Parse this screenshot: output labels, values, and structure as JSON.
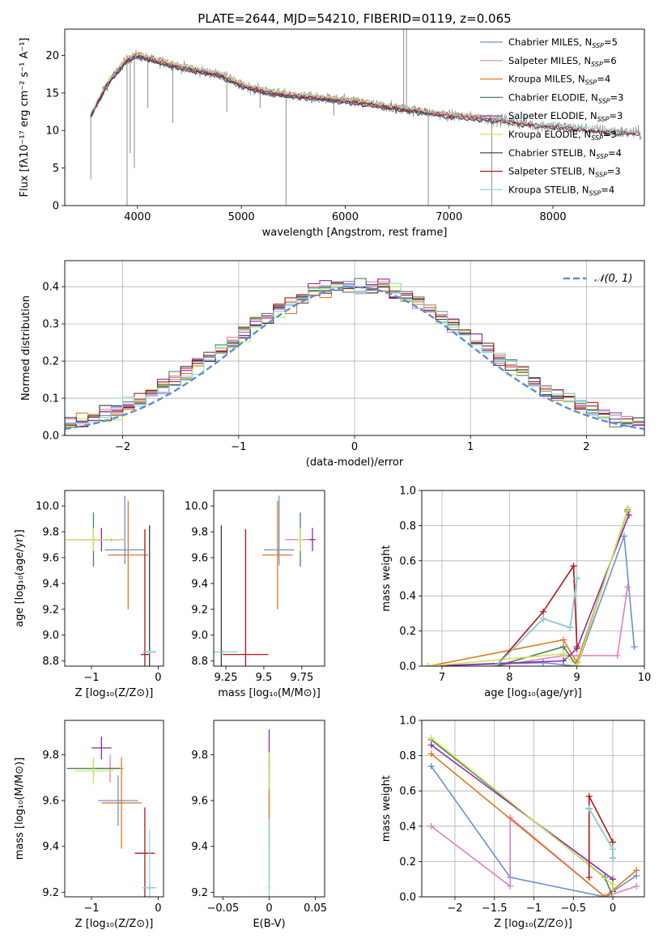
{
  "colors": {
    "Chabrier MILES": "#6b8fd6",
    "Salpeter MILES": "#e07fbf",
    "Kroupa MILES": "#e07a1f",
    "Chabrier ELODIE": "#4f7f5a",
    "Salpeter ELODIE": "#8e2aa3",
    "Kroupa ELODIE": "#c9e85a",
    "Chabrier STELIB": "#3a3a3a",
    "Salpeter STELIB": "#b01818",
    "Kroupa STELIB": "#8fd6da",
    "data": "#808080",
    "normal": "#5b8fd6"
  },
  "chart_data": [
    {
      "id": "spectrum",
      "type": "line",
      "title": "PLATE=2644, MJD=54210, FIBERID=0119, z=0.065",
      "xlabel": "wavelength [Angstrom, rest frame]",
      "ylabel": "Flux [fλ10⁻¹⁷ erg cm⁻² s⁻¹ A⁻¹]",
      "xlim": [
        3300,
        8880
      ],
      "ylim": [
        0,
        23.5
      ],
      "xticks": [
        4000,
        5000,
        6000,
        7000,
        8000
      ],
      "yticks": [
        0,
        5,
        10,
        15,
        20
      ],
      "legend_position": "top-right",
      "legend": [
        {
          "series": "Chabrier MILES",
          "label": "Chabrier MILES, N",
          "sub": "SSP",
          "tail": "=5"
        },
        {
          "series": "Salpeter MILES",
          "label": "Salpeter MILES, N",
          "sub": "SSP",
          "tail": "=6"
        },
        {
          "series": "Kroupa MILES",
          "label": "Kroupa MILES, N",
          "sub": "SSP",
          "tail": "=4"
        },
        {
          "series": "Chabrier ELODIE",
          "label": "Chabrier ELODIE, N",
          "sub": "SSP",
          "tail": "=3"
        },
        {
          "series": "Salpeter ELODIE",
          "label": "Salpeter ELODIE, N",
          "sub": "SSP",
          "tail": "=3"
        },
        {
          "series": "Kroupa ELODIE",
          "label": "Kroupa ELODIE, N",
          "sub": "SSP",
          "tail": "=3"
        },
        {
          "series": "Chabrier STELIB",
          "label": "Chabrier STELIB, N",
          "sub": "SSP",
          "tail": "=4"
        },
        {
          "series": "Salpeter STELIB",
          "label": "Salpeter STELIB, N",
          "sub": "SSP",
          "tail": "=3"
        },
        {
          "series": "Kroupa STELIB",
          "label": "Kroupa STELIB, N",
          "sub": "SSP",
          "tail": "=4"
        }
      ],
      "continuum": {
        "wavelength": [
          3550,
          3700,
          3900,
          4000,
          4200,
          4500,
          4800,
          5000,
          5300,
          5600,
          6000,
          6500,
          7000,
          7400,
          7800,
          8200,
          8600,
          8850
        ],
        "flux": [
          12.0,
          16.0,
          19.5,
          20.0,
          19.2,
          18.2,
          17.4,
          16.0,
          15.0,
          14.5,
          14.0,
          13.0,
          12.0,
          11.5,
          10.8,
          10.3,
          9.8,
          9.6
        ]
      },
      "model_coverage": {
        "MILES": [
          3550,
          7410
        ],
        "ELODIE": [
          3550,
          6800
        ],
        "STELIB": [
          3550,
          8850
        ]
      },
      "spikes": [
        {
          "x": 3550,
          "y": 3.5
        },
        {
          "x": 3900,
          "y": 0
        },
        {
          "x": 3930,
          "y": 7.0
        },
        {
          "x": 3970,
          "y": 5.0
        },
        {
          "x": 4100,
          "y": 13.0
        },
        {
          "x": 4340,
          "y": 11.0
        },
        {
          "x": 4860,
          "y": 12.5
        },
        {
          "x": 5180,
          "y": 13.0
        },
        {
          "x": 5430,
          "y": 0
        },
        {
          "x": 5890,
          "y": 12.0
        },
        {
          "x": 6563,
          "y": 23.5
        },
        {
          "x": 6590,
          "y": 23.5
        },
        {
          "x": 6800,
          "y": 0
        },
        {
          "x": 7410,
          "y": 0
        }
      ]
    },
    {
      "id": "residuals",
      "type": "line",
      "xlabel": "(data-model)/error",
      "ylabel": "Normed distribution",
      "xlim": [
        -2.5,
        2.5
      ],
      "ylim": [
        0,
        0.47
      ],
      "xticks": [
        -2,
        -1,
        0,
        1,
        2
      ],
      "yticks": [
        0.0,
        0.1,
        0.2,
        0.3,
        0.4
      ],
      "bin_width": 0.1,
      "legend_position": "top-right",
      "normal_label": "𝒩(0, 1)",
      "normal": {
        "mean": 0,
        "sigma": 1
      }
    },
    {
      "id": "age-vs-Z",
      "type": "scatter",
      "xlabel": "Z [log₁₀(Z/Z⊙)]",
      "ylabel": "age  [log₁₀(age/yr)]",
      "xlim": [
        -1.4,
        0.08
      ],
      "ylim": [
        8.76,
        10.12
      ],
      "xticks": [
        -1,
        0
      ],
      "yticks": [
        8.8,
        9.0,
        9.2,
        9.4,
        9.6,
        9.8,
        10.0
      ],
      "points": [
        {
          "series": "Chabrier MILES",
          "x": -0.5,
          "y": 9.66,
          "xerr": 0.3,
          "yerr": 0.11,
          "yerr_hi": 0.42
        },
        {
          "series": "Salpeter MILES",
          "x": -0.7,
          "y": 9.74,
          "xerr": 0.18,
          "yerr": 0.01
        },
        {
          "series": "Kroupa MILES",
          "x": -0.45,
          "y": 9.62,
          "xerr": 0.3,
          "yerr": 0.42
        },
        {
          "series": "Chabrier ELODIE",
          "x": -0.97,
          "y": 9.74,
          "xerr": 0.4,
          "yerr": 0.21
        },
        {
          "series": "Salpeter ELODIE",
          "x": -0.85,
          "y": 9.74,
          "xerr": 0.28,
          "yerr": 0.09
        },
        {
          "series": "Kroupa ELODIE",
          "x": -0.97,
          "y": 9.74,
          "xerr": 0.42,
          "yerr": 0.09
        },
        {
          "series": "Chabrier STELIB",
          "x": -0.13,
          "y": 8.87,
          "xerr": 0.1,
          "yerr": 0.98
        },
        {
          "series": "Salpeter STELIB",
          "x": -0.2,
          "y": 8.85,
          "xerr": 0.06,
          "yerr": 0.97
        },
        {
          "series": "Kroupa STELIB",
          "x": -0.13,
          "y": 8.87,
          "xerr": 0.1,
          "yerr": 0.01
        }
      ]
    },
    {
      "id": "age-vs-mass",
      "type": "scatter",
      "xlabel": "mass [log₁₀(M/M⊙)]",
      "ylabel": "",
      "xlim": [
        9.17,
        9.9
      ],
      "ylim": [
        8.76,
        10.12
      ],
      "xticks": [
        9.25,
        9.5,
        9.75
      ],
      "yticks": [
        8.8,
        9.0,
        9.2,
        9.4,
        9.6,
        9.8,
        10.0
      ],
      "points": [
        {
          "series": "Chabrier MILES",
          "x": 9.6,
          "y": 9.66,
          "xerr": 0.1,
          "yerr": 0.12,
          "yerr_hi": 0.42
        },
        {
          "series": "Salpeter MILES",
          "x": 9.74,
          "y": 9.74,
          "xerr": 0.1,
          "yerr": 0.01
        },
        {
          "series": "Kroupa MILES",
          "x": 9.59,
          "y": 9.62,
          "xerr": 0.1,
          "yerr": 0.42
        },
        {
          "series": "Chabrier ELODIE",
          "x": 9.74,
          "y": 9.74,
          "xerr": 0.02,
          "yerr": 0.21
        },
        {
          "series": "Salpeter ELODIE",
          "x": 9.82,
          "y": 9.74,
          "xerr": 0.02,
          "yerr": 0.09
        },
        {
          "series": "Kroupa ELODIE",
          "x": 9.74,
          "y": 9.74,
          "xerr": 0.02,
          "yerr": 0.09
        },
        {
          "series": "Chabrier STELIB",
          "x": 9.22,
          "y": 8.87,
          "xerr": 0.01,
          "yerr": 0.98
        },
        {
          "series": "Salpeter STELIB",
          "x": 9.38,
          "y": 8.85,
          "xerr": 0.15,
          "yerr": 0.97
        },
        {
          "series": "Kroupa STELIB",
          "x": 9.23,
          "y": 8.87,
          "xerr": 0.1,
          "yerr": 0.01
        }
      ]
    },
    {
      "id": "weight-vs-age",
      "type": "line",
      "xlabel": "age  [log₁₀(age/yr)]",
      "ylabel": "mass weight",
      "xlim": [
        6.7,
        10
      ],
      "ylim": [
        0,
        1
      ],
      "xticks": [
        7,
        8,
        9,
        10
      ],
      "yticks": [
        0.0,
        0.2,
        0.4,
        0.6,
        0.8,
        1.0
      ],
      "series": [
        {
          "name": "Chabrier MILES",
          "x": [
            6.8,
            8.5,
            9.0,
            9.7,
            9.85
          ],
          "y": [
            0.0,
            0.02,
            0.0,
            0.74,
            0.11
          ]
        },
        {
          "name": "Salpeter MILES",
          "x": [
            7.8,
            8.8,
            9.6,
            9.75,
            9.73
          ],
          "y": [
            0.0,
            0.06,
            0.06,
            0.45,
            0.4
          ]
        },
        {
          "name": "Kroupa MILES",
          "x": [
            6.8,
            8.8,
            9.0,
            9.75
          ],
          "y": [
            0.0,
            0.15,
            0.02,
            0.88
          ]
        },
        {
          "name": "Chabrier ELODIE",
          "x": [
            7.8,
            8.8,
            9.0,
            9.75
          ],
          "y": [
            0.0,
            0.11,
            0.0,
            0.89
          ]
        },
        {
          "name": "Salpeter ELODIE",
          "x": [
            6.8,
            8.8,
            9.0,
            9.77
          ],
          "y": [
            0.0,
            0.03,
            0.1,
            0.86
          ]
        },
        {
          "name": "Kroupa ELODIE",
          "x": [
            6.8,
            8.8,
            9.0,
            9.76
          ],
          "y": [
            0.0,
            0.07,
            0.0,
            0.9
          ]
        },
        {
          "name": "Chabrier STELIB",
          "x": [
            7.8,
            8.5,
            8.9,
            9.0
          ],
          "y": [
            0.0,
            0.27,
            0.22,
            0.5
          ]
        },
        {
          "name": "Salpeter STELIB",
          "x": [
            7.8,
            8.5,
            8.95,
            9.0
          ],
          "y": [
            0.0,
            0.31,
            0.57,
            0.11
          ]
        },
        {
          "name": "Kroupa STELIB",
          "x": [
            7.8,
            8.5,
            8.9,
            9.0
          ],
          "y": [
            0.0,
            0.27,
            0.22,
            0.5
          ]
        }
      ]
    },
    {
      "id": "mass-vs-Z",
      "type": "scatter",
      "xlabel": "Z [log₁₀(Z/Z⊙)]",
      "ylabel": "mass [log₁₀(M/M⊙)]",
      "xlim": [
        -1.4,
        0.08
      ],
      "ylim": [
        9.18,
        9.95
      ],
      "xticks": [
        -1,
        0
      ],
      "yticks": [
        9.2,
        9.4,
        9.6,
        9.8
      ],
      "points": [
        {
          "series": "Chabrier MILES",
          "x": -0.6,
          "y": 9.6,
          "xerr": 0.3,
          "yerr": 0.11
        },
        {
          "series": "Salpeter MILES",
          "x": -0.72,
          "y": 9.74,
          "xerr": 0.2,
          "yerr": 0.06
        },
        {
          "series": "Kroupa MILES",
          "x": -0.55,
          "y": 9.59,
          "xerr": 0.3,
          "yerr": 0.2
        },
        {
          "series": "Chabrier ELODIE",
          "x": -0.97,
          "y": 9.74,
          "xerr": 0.4,
          "yerr": 0.04
        },
        {
          "series": "Salpeter ELODIE",
          "x": -0.85,
          "y": 9.83,
          "xerr": 0.15,
          "yerr": 0.05
        },
        {
          "series": "Kroupa ELODIE",
          "x": -0.97,
          "y": 9.73,
          "xerr": 0.3,
          "yerr": 0.06
        },
        {
          "series": "Chabrier STELIB",
          "x": -0.13,
          "y": 9.22,
          "xerr": 0.1,
          "yerr": 0.01
        },
        {
          "series": "Salpeter STELIB",
          "x": -0.2,
          "y": 9.37,
          "xerr": 0.15,
          "yerr": 0.2
        },
        {
          "series": "Kroupa STELIB",
          "x": -0.13,
          "y": 9.22,
          "xerr": 0.1,
          "yerr": 0.25
        }
      ]
    },
    {
      "id": "mass-vs-EBV",
      "type": "scatter",
      "xlabel": "E(B-V)",
      "ylabel": "",
      "xlim": [
        -0.06,
        0.06
      ],
      "ylim": [
        9.18,
        9.95
      ],
      "xticks": [
        -0.05,
        0.0,
        0.05
      ],
      "yticks": [
        9.2,
        9.4,
        9.6,
        9.8
      ],
      "points": [
        {
          "series": "Chabrier MILES",
          "x": 0,
          "y": 9.6,
          "yerr": 0.11
        },
        {
          "series": "Salpeter MILES",
          "x": 0,
          "y": 9.74,
          "yerr": 0.06
        },
        {
          "series": "Kroupa MILES",
          "x": 0,
          "y": 9.59,
          "yerr": 0.2
        },
        {
          "series": "Chabrier ELODIE",
          "x": 0,
          "y": 9.74,
          "yerr": 0.04
        },
        {
          "series": "Salpeter ELODIE",
          "x": 0,
          "y": 9.83,
          "yerr": 0.08
        },
        {
          "series": "Kroupa ELODIE",
          "x": 0,
          "y": 9.73,
          "yerr": 0.08
        },
        {
          "series": "Chabrier STELIB",
          "x": 0,
          "y": 9.22,
          "yerr": 0.01
        },
        {
          "series": "Salpeter STELIB",
          "x": 0,
          "y": 9.37,
          "yerr": 0.12
        },
        {
          "series": "Kroupa STELIB",
          "x": 0,
          "y": 9.22,
          "yerr": 0.3
        }
      ]
    },
    {
      "id": "weight-vs-Z",
      "type": "line",
      "xlabel": "Z [log₁₀(Z/Z⊙)]",
      "ylabel": "mass weight",
      "xlim": [
        -2.42,
        0.4
      ],
      "ylim": [
        0,
        1
      ],
      "xticks": [
        -2.0,
        -1.5,
        -1.0,
        -0.5,
        0.0
      ],
      "yticks": [
        0.0,
        0.2,
        0.4,
        0.6,
        0.8,
        1.0
      ],
      "series": [
        {
          "name": "Chabrier MILES",
          "x": [
            -2.3,
            -1.3,
            -0.1,
            0.3
          ],
          "y": [
            0.74,
            0.11,
            0.0,
            0.12
          ]
        },
        {
          "name": "Salpeter MILES",
          "x": [
            -2.3,
            -1.3,
            -1.3,
            -0.1,
            0.3
          ],
          "y": [
            0.4,
            0.06,
            0.45,
            0.0,
            0.06
          ]
        },
        {
          "name": "Kroupa MILES",
          "x": [
            -2.3,
            -0.1,
            0.3
          ],
          "y": [
            0.81,
            0.0,
            0.15
          ]
        },
        {
          "name": "Chabrier ELODIE",
          "x": [
            -2.3,
            -0.1,
            0.0
          ],
          "y": [
            0.89,
            0.11,
            0.0
          ]
        },
        {
          "name": "Salpeter ELODIE",
          "x": [
            -2.3,
            0.0,
            0.0
          ],
          "y": [
            0.86,
            0.1,
            0.03
          ]
        },
        {
          "name": "Kroupa ELODIE",
          "x": [
            -2.3,
            0.0,
            0.0
          ],
          "y": [
            0.9,
            0.07,
            0.0
          ]
        },
        {
          "name": "Chabrier STELIB",
          "x": [
            -0.3,
            -0.3,
            0.0,
            0.0
          ],
          "y": [
            0.5,
            0.5,
            0.27,
            0.22
          ]
        },
        {
          "name": "Salpeter STELIB",
          "x": [
            -0.3,
            -0.3,
            0.0
          ],
          "y": [
            0.11,
            0.57,
            0.31
          ]
        },
        {
          "name": "Kroupa STELIB",
          "x": [
            -0.3,
            0.0,
            0.0
          ],
          "y": [
            0.5,
            0.27,
            0.22
          ]
        }
      ]
    }
  ]
}
